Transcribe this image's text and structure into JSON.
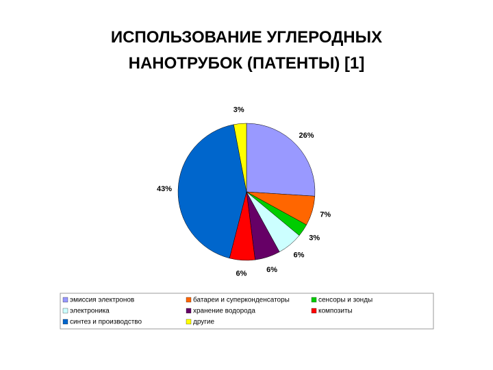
{
  "chart_data": {
    "type": "pie",
    "title": "ИСПОЛЬЗОВАНИЕ УГЛЕРОДНЫХ НАНОТРУБОК (ПАТЕНТЫ) [1]",
    "categories": [
      "эмиссия электронов",
      "батареи и суперконденсаторы",
      "сенсоры и зонды",
      "электроника",
      "хранение водорода",
      "композиты",
      "синтез и производство",
      "другие"
    ],
    "values": [
      26,
      7,
      3,
      6,
      6,
      6,
      43,
      3
    ],
    "value_labels": [
      "26%",
      "7%",
      "3%",
      "6%",
      "6%",
      "6%",
      "43%",
      "3%"
    ],
    "colors": [
      "#9999ff",
      "#ff6600",
      "#00cc00",
      "#ccffff",
      "#660066",
      "#ff0000",
      "#0066cc",
      "#ffff00"
    ]
  }
}
